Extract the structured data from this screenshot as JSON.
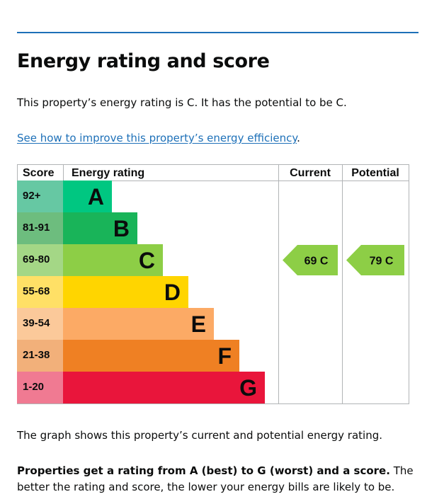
{
  "page": {
    "title": "Energy rating and score",
    "intro": "This property’s energy rating is C. It has the potential to be C.",
    "link_text": "See how to improve this property’s energy efficiency",
    "link_suffix": ".",
    "footnote": "The graph shows this property’s current and potential energy rating.",
    "explain_bold": "Properties get a rating from A (best) to G (worst) and a score.",
    "explain_rest": " The better the rating and score, the lower your energy bills are likely to be."
  },
  "chart_data": {
    "type": "bar",
    "headers": {
      "score": "Score",
      "rating": "Energy rating",
      "current": "Current",
      "potential": "Potential"
    },
    "bands": [
      {
        "score": "92+",
        "letter": "A",
        "color": "#00c781",
        "score_bg": "#66c8a3",
        "width_frac": 0.0
      },
      {
        "score": "81-91",
        "letter": "B",
        "color": "#19b459",
        "score_bg": "#6dbd7e",
        "width_frac": 0.0
      },
      {
        "score": "69-80",
        "letter": "C",
        "color": "#8dce46",
        "score_bg": "#a4d786",
        "width_frac": 0.0
      },
      {
        "score": "55-68",
        "letter": "D",
        "color": "#ffd500",
        "score_bg": "#ffe066",
        "width_frac": 0.0
      },
      {
        "score": "39-54",
        "letter": "E",
        "color": "#fcaa65",
        "score_bg": "#fbc99a",
        "width_frac": 0.0
      },
      {
        "score": "21-38",
        "letter": "F",
        "color": "#ef8023",
        "score_bg": "#f2b07a",
        "width_frac": 0.0
      },
      {
        "score": "1-20",
        "letter": "G",
        "color": "#e9153b",
        "score_bg": "#f07a92",
        "width_frac": 0.0
      }
    ],
    "current": {
      "score": 69,
      "letter": "C",
      "label": "69  C"
    },
    "potential": {
      "score": 79,
      "letter": "C",
      "label": "79  C"
    }
  }
}
